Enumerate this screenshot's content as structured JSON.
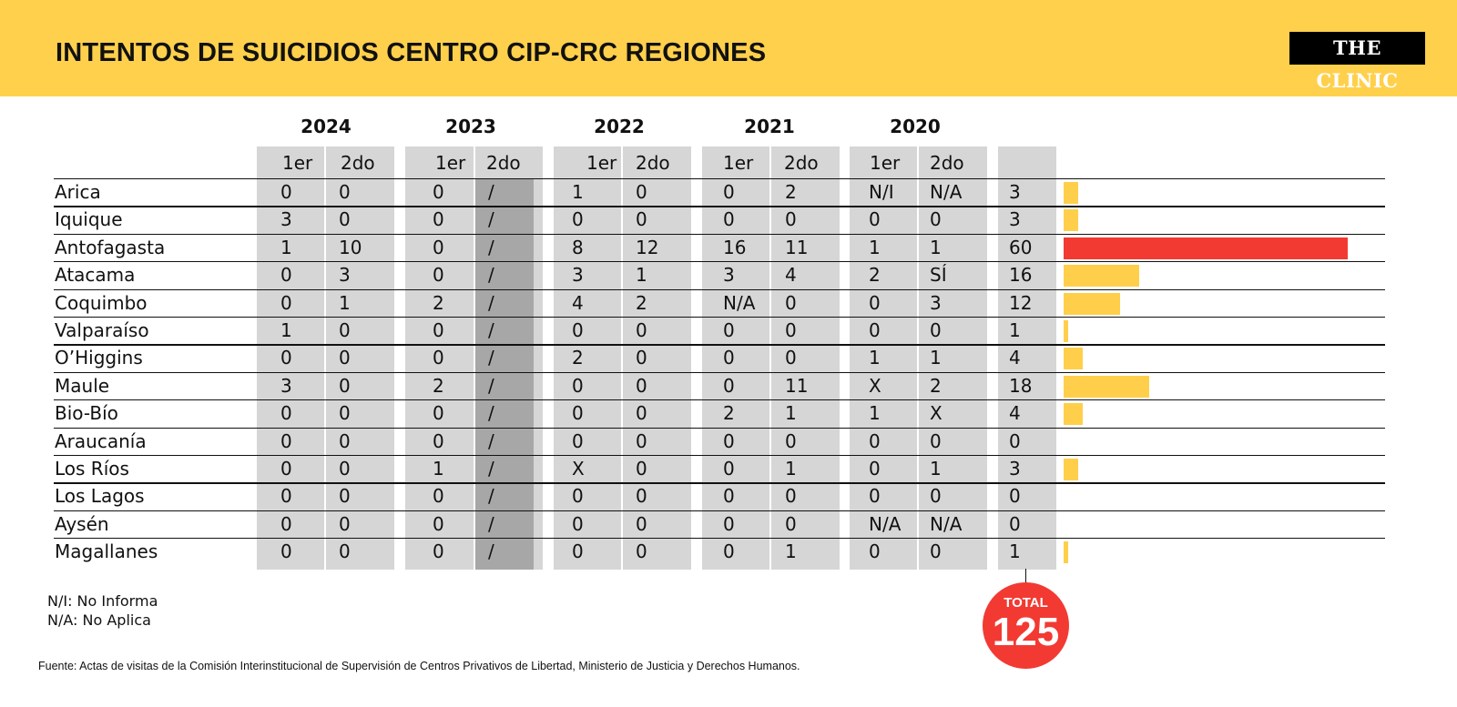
{
  "header": {
    "title": "INTENTOS DE SUICIDIOS CENTRO CIP-CRC REGIONES",
    "logo": "THE CLINIC"
  },
  "colors": {
    "header_bg": "#ffd04c",
    "bar": "#ffcf4b",
    "bar_max": "#f23a32",
    "column_bg": "#d6d6d6",
    "column_empty": "#a7a7a7"
  },
  "chart_data": {
    "type": "table",
    "title": "INTENTOS DE SUICIDIOS CENTRO CIP-CRC REGIONES",
    "years": [
      "2024",
      "2023",
      "2022",
      "2021",
      "2020"
    ],
    "halves": [
      "1er",
      "2do"
    ],
    "rows": [
      {
        "region": "Arica",
        "values": [
          "0",
          "0",
          "0",
          "/",
          "1",
          "0",
          "0",
          "2",
          "N/I",
          "N/A"
        ],
        "total": 3
      },
      {
        "region": "Iquique",
        "values": [
          "3",
          "0",
          "0",
          "/",
          "0",
          "0",
          "0",
          "0",
          "0",
          "0"
        ],
        "total": 3
      },
      {
        "region": "Antofagasta",
        "values": [
          "1",
          "10",
          "0",
          "/",
          "8",
          "12",
          "16",
          "11",
          "1",
          "1"
        ],
        "total": 60
      },
      {
        "region": "Atacama",
        "values": [
          "0",
          "3",
          "0",
          "/",
          "3",
          "1",
          "3",
          "4",
          "2",
          "SÍ"
        ],
        "total": 16
      },
      {
        "region": "Coquimbo",
        "values": [
          "0",
          "1",
          "2",
          "/",
          "4",
          "2",
          "N/A",
          "0",
          "0",
          "3"
        ],
        "total": 12
      },
      {
        "region": "Valparaíso",
        "values": [
          "1",
          "0",
          "0",
          "/",
          "0",
          "0",
          "0",
          "0",
          "0",
          "0"
        ],
        "total": 1
      },
      {
        "region": "O’Higgins",
        "values": [
          "0",
          "0",
          "0",
          "/",
          "2",
          "0",
          "0",
          "0",
          "1",
          "1"
        ],
        "total": 4
      },
      {
        "region": "Maule",
        "values": [
          "3",
          "0",
          "2",
          "/",
          "0",
          "0",
          "0",
          "11",
          "X",
          "2"
        ],
        "total": 18
      },
      {
        "region": "Bio-Bío",
        "values": [
          "0",
          "0",
          "0",
          "/",
          "0",
          "0",
          "2",
          "1",
          "1",
          "X"
        ],
        "total": 4
      },
      {
        "region": "Araucanía",
        "values": [
          "0",
          "0",
          "0",
          "/",
          "0",
          "0",
          "0",
          "0",
          "0",
          "0"
        ],
        "total": 0
      },
      {
        "region": "Los Ríos",
        "values": [
          "0",
          "0",
          "1",
          "/",
          "X",
          "0",
          "0",
          "1",
          "0",
          "1"
        ],
        "total": 3
      },
      {
        "region": "Los Lagos",
        "values": [
          "0",
          "0",
          "0",
          "/",
          "0",
          "0",
          "0",
          "0",
          "0",
          "0"
        ],
        "total": 0
      },
      {
        "region": "Aysén",
        "values": [
          "0",
          "0",
          "0",
          "/",
          "0",
          "0",
          "0",
          "0",
          "N/A",
          "N/A"
        ],
        "total": 0
      },
      {
        "region": "Magallanes",
        "values": [
          "0",
          "0",
          "0",
          "/",
          "0",
          "0",
          "0",
          "1",
          "0",
          "0"
        ],
        "total": 1
      }
    ],
    "grand_total": {
      "label": "TOTAL",
      "value": 125
    }
  },
  "legend": {
    "ni": "N/I: No Informa",
    "na": "N/A: No Aplica"
  },
  "source": "Fuente: Actas de visitas de la Comisión Interinstitucional de Supervisión de Centros Privativos de Libertad, Ministerio de Justicia y Derechos Humanos."
}
